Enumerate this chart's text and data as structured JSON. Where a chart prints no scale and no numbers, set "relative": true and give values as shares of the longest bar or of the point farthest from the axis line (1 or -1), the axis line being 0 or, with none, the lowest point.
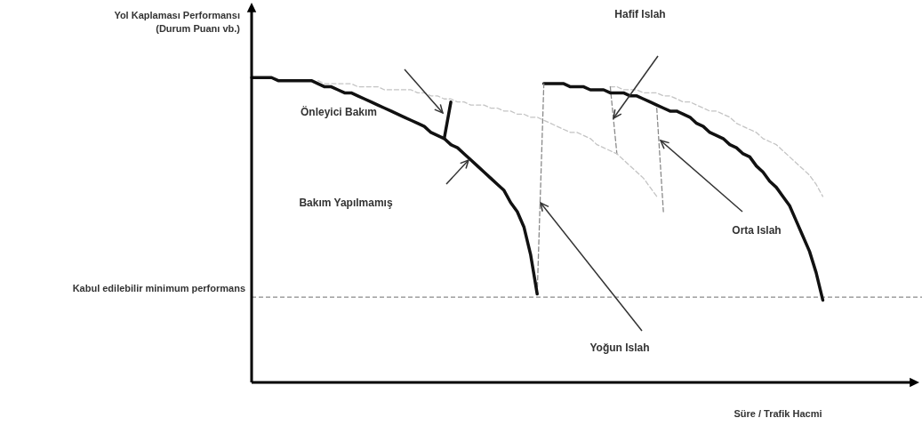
{
  "chart_data": {
    "type": "line",
    "relative": true,
    "ylabel": "Yol Kaplaması Performansı (Durum Puanı vb.)",
    "xlabel": "Süre / Trafik Hacmi",
    "marker": "none",
    "categories": [
      null,
      null,
      null,
      null,
      null,
      null,
      null,
      null,
      null,
      null,
      null,
      null,
      null,
      null,
      null,
      null,
      null,
      null,
      null,
      null,
      null,
      null,
      null,
      null,
      null,
      null,
      null,
      null,
      null,
      null,
      null,
      null,
      null,
      null,
      null,
      null,
      null,
      null,
      null,
      null,
      null,
      null,
      null,
      null,
      null,
      null,
      null,
      null,
      null,
      null,
      null,
      null,
      null,
      null,
      null,
      null,
      null,
      null,
      null,
      null,
      null,
      null,
      null,
      null,
      null,
      null,
      null,
      null,
      null,
      null,
      null,
      null,
      null,
      null,
      null,
      null,
      null,
      null,
      null,
      null,
      null,
      null,
      null,
      null,
      null,
      null,
      null,
      null,
      null,
      null,
      null,
      null,
      null,
      null,
      null,
      null,
      null,
      null,
      null,
      null,
      null
    ],
    "series": [
      {
        "color": "#111111",
        "line_style": "solid",
        "values": [
          1.0,
          1.0,
          1.0,
          1.0,
          0.99,
          0.99,
          0.99,
          0.99,
          0.99,
          0.99,
          0.98,
          0.97,
          0.97,
          0.96,
          0.95,
          0.95,
          0.94,
          0.93,
          0.92,
          0.91,
          0.9,
          0.89,
          0.88,
          0.87,
          0.86,
          0.85,
          0.84,
          0.82,
          0.81,
          0.8,
          0.78,
          0.77,
          0.75,
          0.73,
          0.71,
          0.69,
          0.67,
          0.65,
          0.63,
          0.59,
          0.56,
          0.51,
          0.42,
          0.29,
          null,
          null,
          null,
          null,
          null,
          null,
          null,
          null,
          null,
          null,
          null,
          null,
          null,
          null,
          null,
          null,
          null,
          null,
          null,
          null,
          null,
          null,
          null,
          null,
          null,
          null,
          null,
          null,
          null,
          null,
          null,
          null,
          null,
          null,
          null,
          null,
          null,
          null,
          null,
          null,
          null,
          null,
          null,
          null,
          null,
          null,
          null,
          null,
          null,
          null,
          null,
          null,
          null,
          null,
          null,
          null,
          null
        ]
      },
      {
        "color": "#111111",
        "line_style": "solid",
        "values": [
          null,
          null,
          null,
          null,
          null,
          null,
          null,
          null,
          null,
          null,
          null,
          null,
          null,
          null,
          null,
          null,
          null,
          null,
          null,
          null,
          null,
          null,
          null,
          null,
          null,
          null,
          null,
          null,
          null,
          0.8,
          0.92,
          null,
          null,
          null,
          null,
          null,
          null,
          null,
          null,
          null,
          null,
          null,
          null,
          null,
          null,
          null,
          null,
          null,
          null,
          null,
          null,
          null,
          null,
          null,
          null,
          null,
          null,
          null,
          null,
          null,
          null,
          null,
          null,
          null,
          null,
          null,
          null,
          null,
          null,
          null,
          null,
          null,
          null,
          null,
          null,
          null,
          null,
          null,
          null,
          null,
          null,
          null,
          null,
          null,
          null,
          null,
          null,
          null,
          null,
          null,
          null,
          null,
          null,
          null,
          null,
          null,
          null,
          null,
          null,
          null,
          null
        ]
      },
      {
        "color": "#c4c4c4",
        "line_style": "dashed",
        "values": [
          null,
          null,
          null,
          null,
          null,
          null,
          null,
          null,
          null,
          null,
          0.99,
          0.98,
          0.98,
          0.98,
          0.98,
          0.98,
          0.97,
          0.97,
          0.97,
          0.97,
          0.96,
          0.96,
          0.96,
          0.96,
          0.96,
          0.95,
          0.95,
          0.94,
          0.94,
          0.93,
          0.93,
          0.92,
          0.92,
          0.91,
          0.91,
          0.91,
          0.9,
          0.9,
          0.89,
          0.89,
          0.88,
          0.88,
          0.87,
          0.87,
          0.86,
          0.85,
          0.84,
          0.83,
          0.82,
          0.82,
          0.81,
          0.8,
          0.78,
          0.77,
          0.76,
          0.75,
          0.73,
          0.71,
          0.69,
          0.67,
          0.64,
          0.61,
          null,
          null,
          null,
          null,
          null,
          null,
          null,
          null,
          null,
          null,
          null,
          null,
          null,
          null,
          null,
          null,
          null,
          null,
          null,
          null,
          null,
          null,
          null,
          null,
          null,
          null,
          null,
          null,
          null,
          null,
          null,
          null,
          null,
          null,
          null,
          null,
          null,
          null,
          null
        ]
      },
      {
        "color": "#8a8a8a",
        "line_style": "dashed",
        "values": [
          null,
          null,
          null,
          null,
          null,
          null,
          null,
          null,
          null,
          null,
          null,
          null,
          null,
          null,
          null,
          null,
          null,
          null,
          null,
          null,
          null,
          null,
          null,
          null,
          null,
          null,
          null,
          null,
          null,
          null,
          null,
          null,
          null,
          null,
          null,
          null,
          null,
          null,
          null,
          null,
          null,
          null,
          null,
          0.29,
          0.98,
          null,
          null,
          null,
          null,
          null,
          null,
          null,
          null,
          null,
          null,
          null,
          null,
          null,
          null,
          null,
          null,
          null,
          null,
          null,
          null,
          null,
          null,
          null,
          null,
          null,
          null,
          null,
          null,
          null,
          null,
          null,
          null,
          null,
          null,
          null,
          null,
          null,
          null,
          null,
          null,
          null,
          null,
          null,
          null,
          null,
          null,
          null,
          null,
          null,
          null,
          null,
          null,
          null,
          null,
          null,
          null
        ]
      },
      {
        "color": "#111111",
        "line_style": "solid",
        "values": [
          null,
          null,
          null,
          null,
          null,
          null,
          null,
          null,
          null,
          null,
          null,
          null,
          null,
          null,
          null,
          null,
          null,
          null,
          null,
          null,
          null,
          null,
          null,
          null,
          null,
          null,
          null,
          null,
          null,
          null,
          null,
          null,
          null,
          null,
          null,
          null,
          null,
          null,
          null,
          null,
          null,
          null,
          null,
          null,
          0.98,
          0.98,
          0.98,
          0.98,
          0.97,
          0.97,
          0.97,
          0.96,
          0.96,
          0.96,
          0.95,
          0.95,
          0.95,
          0.94,
          0.94,
          0.93,
          0.92,
          0.91,
          0.9,
          0.89,
          0.89,
          0.88,
          0.87,
          0.85,
          0.84,
          0.82,
          0.81,
          0.8,
          0.78,
          0.77,
          0.75,
          0.74,
          0.71,
          0.69,
          0.66,
          0.64,
          0.61,
          0.58,
          0.53,
          0.48,
          0.43,
          0.36,
          0.27,
          null,
          null,
          null,
          null,
          null,
          null,
          null,
          null,
          null,
          null,
          null,
          null,
          null,
          null
        ]
      },
      {
        "color": "#8a8a8a",
        "line_style": "dashed",
        "values": [
          null,
          null,
          null,
          null,
          null,
          null,
          null,
          null,
          null,
          null,
          null,
          null,
          null,
          null,
          null,
          null,
          null,
          null,
          null,
          null,
          null,
          null,
          null,
          null,
          null,
          null,
          null,
          null,
          null,
          null,
          null,
          null,
          null,
          null,
          null,
          null,
          null,
          null,
          null,
          null,
          null,
          null,
          null,
          null,
          null,
          null,
          null,
          null,
          null,
          null,
          null,
          null,
          null,
          null,
          0.97,
          0.75,
          null,
          null,
          null,
          null,
          null,
          null,
          null,
          null,
          null,
          null,
          null,
          null,
          null,
          null,
          null,
          null,
          null,
          null,
          null,
          null,
          null,
          null,
          null,
          null,
          null,
          null,
          null,
          null,
          null,
          null,
          null,
          null,
          null,
          null,
          null,
          null,
          null,
          null,
          null,
          null,
          null,
          null,
          null,
          null,
          null
        ]
      },
      {
        "color": "#8a8a8a",
        "line_style": "dashed",
        "values": [
          null,
          null,
          null,
          null,
          null,
          null,
          null,
          null,
          null,
          null,
          null,
          null,
          null,
          null,
          null,
          null,
          null,
          null,
          null,
          null,
          null,
          null,
          null,
          null,
          null,
          null,
          null,
          null,
          null,
          null,
          null,
          null,
          null,
          null,
          null,
          null,
          null,
          null,
          null,
          null,
          null,
          null,
          null,
          null,
          null,
          null,
          null,
          null,
          null,
          null,
          null,
          null,
          null,
          null,
          null,
          null,
          null,
          null,
          null,
          null,
          null,
          0.9,
          0.56,
          null,
          null,
          null,
          null,
          null,
          null,
          null,
          null,
          null,
          null,
          null,
          null,
          null,
          null,
          null,
          null,
          null,
          null,
          null,
          null,
          null,
          null,
          null,
          null,
          null,
          null,
          null,
          null,
          null,
          null,
          null,
          null,
          null,
          null,
          null,
          null,
          null,
          null
        ]
      },
      {
        "color": "#c4c4c4",
        "line_style": "dashed",
        "values": [
          null,
          null,
          null,
          null,
          null,
          null,
          null,
          null,
          null,
          null,
          null,
          null,
          null,
          null,
          null,
          null,
          null,
          null,
          null,
          null,
          null,
          null,
          null,
          null,
          null,
          null,
          null,
          null,
          null,
          null,
          null,
          null,
          null,
          null,
          null,
          null,
          null,
          null,
          null,
          null,
          null,
          null,
          null,
          null,
          null,
          null,
          null,
          null,
          null,
          null,
          null,
          null,
          null,
          null,
          0.97,
          0.97,
          0.96,
          0.96,
          0.96,
          0.95,
          0.95,
          0.95,
          0.94,
          0.94,
          0.93,
          0.92,
          0.92,
          0.91,
          0.9,
          0.89,
          0.89,
          0.88,
          0.87,
          0.85,
          0.84,
          0.83,
          0.82,
          0.8,
          0.79,
          0.78,
          0.76,
          0.74,
          0.72,
          0.7,
          0.68,
          0.65,
          0.61,
          null,
          null,
          null,
          null,
          null,
          null,
          null,
          null,
          null,
          null,
          null,
          null,
          null,
          null
        ]
      }
    ],
    "ref_lines": [
      {
        "axis": "y",
        "value": 0.28,
        "label": "Kabul edilebilir minimum performans",
        "color": "#8a8a8a",
        "line_style": "dashed"
      }
    ],
    "annotations": [
      "Önleyici Bakım",
      "Bakım Yapılmamış",
      "Hafif Islah",
      "Orta Islah",
      "Yoğun Islah"
    ]
  }
}
